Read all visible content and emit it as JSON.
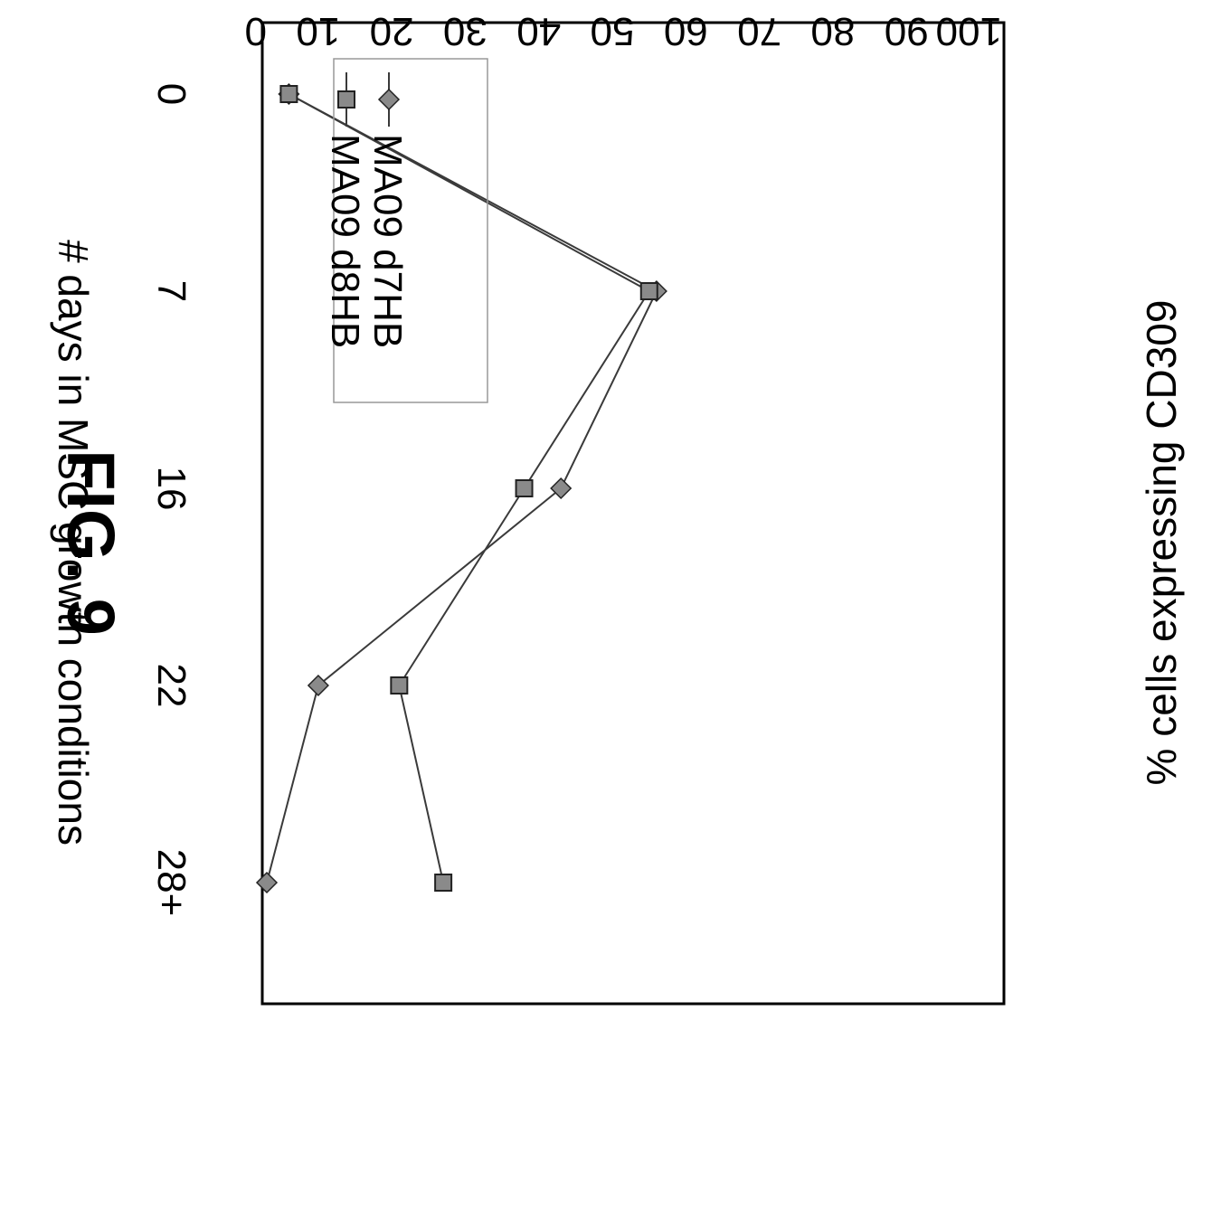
{
  "figure_label": "FIG. 9",
  "chart_data": {
    "type": "line",
    "orientation": "rotated 90° clockwise (x axis runs top-to-bottom along the right edge)",
    "categories": [
      "0",
      "7",
      "16",
      "22",
      "28+"
    ],
    "series": [
      {
        "name": "MA09 d7HB",
        "marker": "diamond",
        "values": [
          3,
          53,
          40,
          7,
          0
        ]
      },
      {
        "name": "MA09 d8HB",
        "marker": "square",
        "values": [
          3,
          52,
          35,
          18,
          24
        ]
      }
    ],
    "xlabel": "# days in MSC growth conditions",
    "ylabel": "% cells expressing CD309",
    "ylim": [
      0,
      100
    ],
    "yticks": [
      "0",
      "10",
      "20",
      "30",
      "40",
      "50",
      "60",
      "70",
      "80",
      "90",
      "100"
    ],
    "grid": false,
    "legend_position": "top-left",
    "colors": {
      "line": "#3a3a3a",
      "marker_fill": "#8a8a8a",
      "axis": "#000000"
    }
  }
}
